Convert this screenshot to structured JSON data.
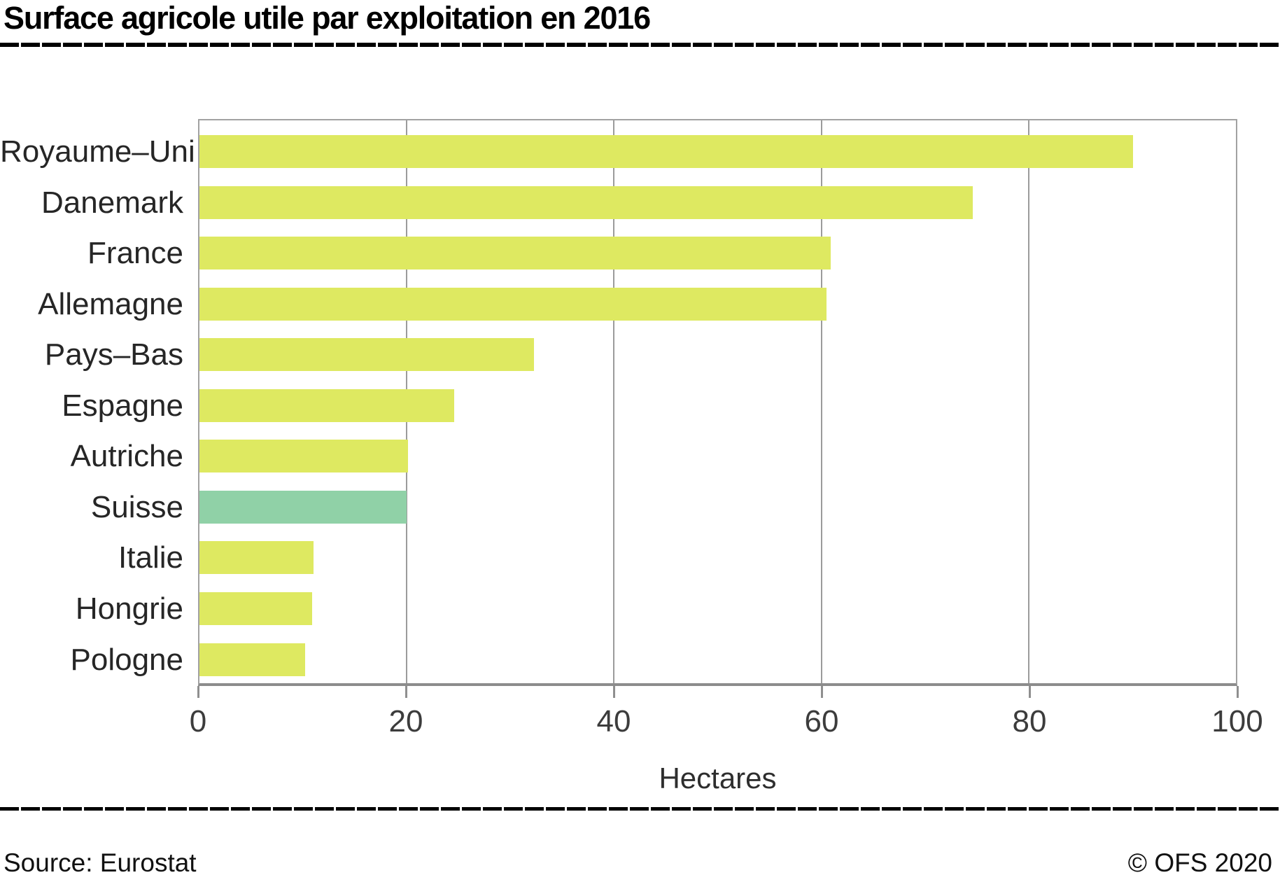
{
  "title": "Surface agricole utile par exploitation en 2016",
  "footer": {
    "source": "Source: Eurostat",
    "copyright": "© OFS 2020"
  },
  "colors": {
    "bar_default": "#dee961",
    "bar_highlight": "#90d1a7",
    "gridline": "#9b9b9b",
    "axis": "#8c8c8c",
    "title_text": "#000000",
    "label_text": "#262626"
  },
  "chart_data": {
    "type": "bar",
    "orientation": "horizontal",
    "title": "Surface agricole utile par exploitation en 2016",
    "categories": [
      "Royaume–Uni",
      "Danemark",
      "France",
      "Allemagne",
      "Pays–Bas",
      "Espagne",
      "Autriche",
      "Suisse",
      "Italie",
      "Hongrie",
      "Pologne"
    ],
    "values": [
      90.1,
      74.6,
      60.9,
      60.5,
      32.3,
      24.6,
      20.1,
      20.0,
      11.0,
      10.9,
      10.2
    ],
    "unit": "hectares",
    "xlabel": "Hectares",
    "ylabel": "",
    "xlim": [
      0,
      100
    ],
    "xticks": [
      0,
      20,
      40,
      60,
      80,
      100
    ],
    "grid": "vertical",
    "legend": "none",
    "bar_color": "#dee961",
    "highlight_category": "Suisse",
    "highlight_color": "#90d1a7"
  }
}
